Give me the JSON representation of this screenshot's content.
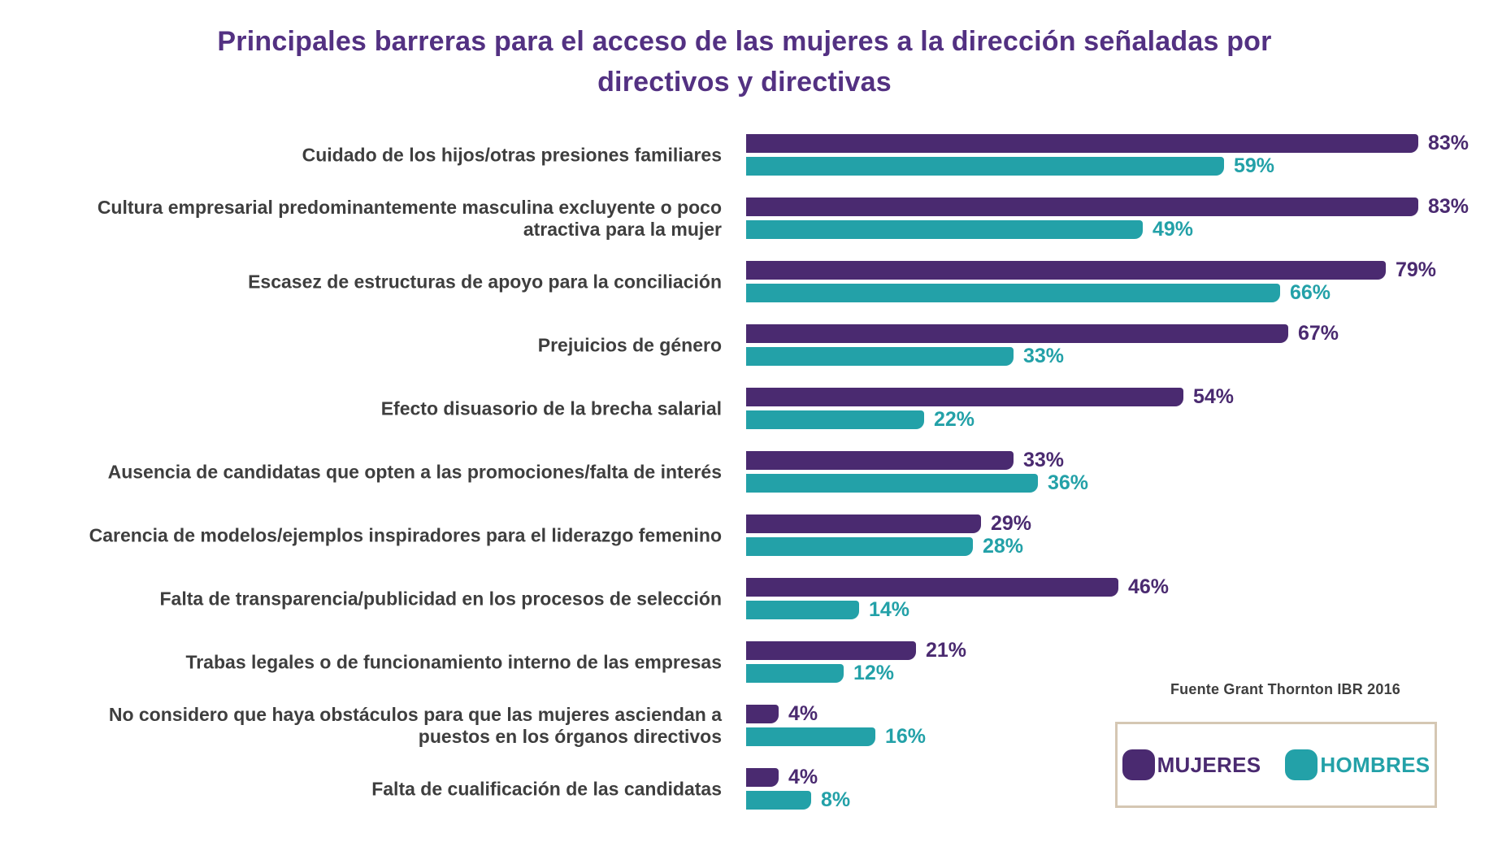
{
  "title": {
    "lines": [
      "Principales barreras para el acceso de las mujeres a la dirección señaladas por",
      "directivos y directivas"
    ]
  },
  "source": "Fuente Grant Thornton IBR 2016",
  "legend": [
    {
      "label": "MUJERES",
      "color": "#4a2a70"
    },
    {
      "label": "HOMBRES",
      "color": "#23a1a8"
    }
  ],
  "colors": {
    "mujeres": "#4a2a70",
    "hombres": "#23a1a8",
    "title": "#533182",
    "category_text": "#3e3e3e",
    "legend_border": "#d5c7b3",
    "background": "#ffffff"
  },
  "chart_data": {
    "type": "bar",
    "orientation": "horizontal",
    "title": "Principales barreras para el acceso de las mujeres a la dirección señaladas por directivos y directivas",
    "xlabel": "",
    "ylabel": "",
    "xlim": [
      0,
      100
    ],
    "grid": false,
    "legend_position": "bottom-right",
    "value_suffix": "%",
    "categories": [
      "Cuidado de los hijos/otras presiones familiares",
      "Cultura empresarial predominantemente masculina excluyente o poco\natractiva para la mujer",
      "Escasez de estructuras de apoyo para la conciliación",
      "Prejuicios de género",
      "Efecto disuasorio de la brecha salarial",
      "Ausencia de candidatas que opten a las promociones/falta de interés",
      "Carencia de modelos/ejemplos inspiradores para el liderazgo femenino",
      "Falta de transparencia/publicidad en los procesos de selección",
      "Trabas legales o de funcionamiento interno de las empresas",
      "No considero que haya obstáculos para que las mujeres asciendan a\npuestos en los órganos directivos",
      "Falta de cualificación de las candidatas"
    ],
    "series": [
      {
        "name": "MUJERES",
        "color": "#4a2a70",
        "values": [
          83,
          83,
          79,
          67,
          54,
          33,
          29,
          46,
          21,
          4,
          4
        ]
      },
      {
        "name": "HOMBRES",
        "color": "#23a1a8",
        "values": [
          59,
          49,
          66,
          33,
          22,
          36,
          28,
          14,
          12,
          16,
          8
        ]
      }
    ]
  }
}
